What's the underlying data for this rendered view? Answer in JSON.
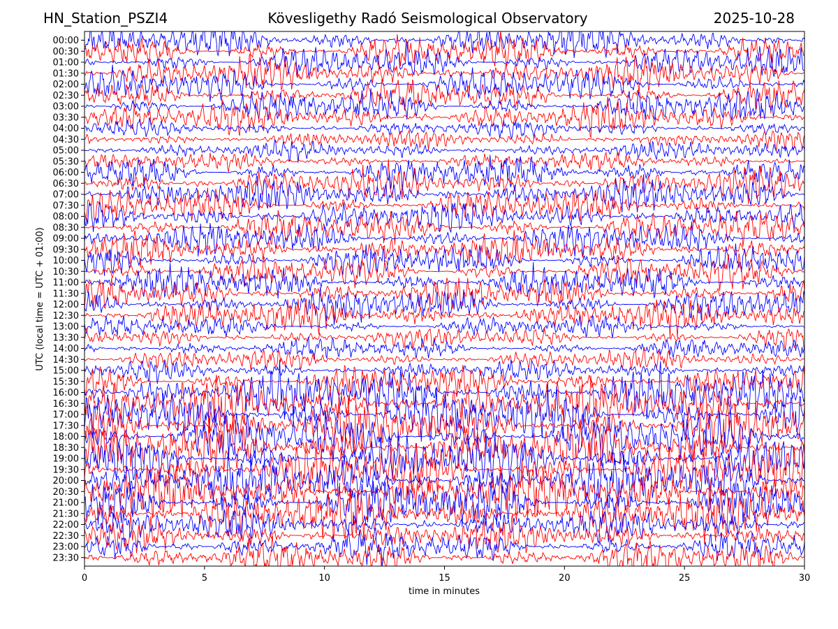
{
  "header": {
    "station": "HN_Station_PSZI4",
    "title": "Kövesligethy Radó Seismological Observatory",
    "date": "2025-10-28"
  },
  "chart_data": {
    "type": "line",
    "title": "Kövesligethy Radó Seismological Observatory",
    "xlabel": "time in minutes",
    "ylabel": "UTC (local time = UTC + 01:00)",
    "xlim": [
      0,
      30
    ],
    "x_ticks": [
      0,
      5,
      10,
      15,
      20,
      25,
      30
    ],
    "y_ticks": [
      "00:00",
      "00:30",
      "01:00",
      "01:30",
      "02:00",
      "02:30",
      "03:00",
      "03:30",
      "04:00",
      "04:30",
      "05:00",
      "05:30",
      "06:00",
      "06:30",
      "07:00",
      "07:30",
      "08:00",
      "08:30",
      "09:00",
      "09:30",
      "10:00",
      "10:30",
      "11:00",
      "11:30",
      "12:00",
      "12:30",
      "13:00",
      "13:30",
      "14:00",
      "14:30",
      "15:00",
      "15:30",
      "16:00",
      "16:30",
      "17:00",
      "17:30",
      "18:00",
      "18:30",
      "19:00",
      "19:30",
      "20:00",
      "20:30",
      "21:00",
      "21:30",
      "22:00",
      "22:30",
      "23:00",
      "23:30"
    ],
    "trace_colors": [
      "#0000ff",
      "#ff0000"
    ],
    "grid": false,
    "legend": "none"
  }
}
